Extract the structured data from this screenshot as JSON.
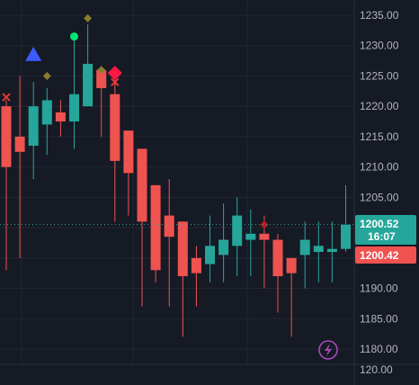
{
  "chart_data": {
    "type": "candlestick",
    "price_axis": {
      "ticks": [
        "1235.00",
        "1230.00",
        "1225.00",
        "1220.00",
        "1215.00",
        "1210.00",
        "1205.00",
        "1200.00",
        "1195.00",
        "1190.00",
        "1185.00",
        "1180.00"
      ],
      "range": [
        1178.0,
        1237.5
      ]
    },
    "sub_axis": {
      "tick": "120.00"
    },
    "last_price": {
      "value": "1200.52",
      "countdown": "16:07",
      "color": "#26a69a"
    },
    "prev_close": {
      "value": "1200.42",
      "color": "#ef5350"
    },
    "colors": {
      "up": "#26a69a",
      "down": "#ef5350",
      "background": "#161a25",
      "grid": "#232733"
    },
    "candles": [
      {
        "o": 1220,
        "h": 1221,
        "l": 1193,
        "c": 1210
      },
      {
        "o": 1215,
        "h": 1225,
        "l": 1195,
        "c": 1212.5
      },
      {
        "o": 1213.5,
        "h": 1224,
        "l": 1208,
        "c": 1220
      },
      {
        "o": 1217,
        "h": 1223,
        "l": 1212,
        "c": 1221
      },
      {
        "o": 1219,
        "h": 1221,
        "l": 1215,
        "c": 1217.5
      },
      {
        "o": 1217.5,
        "h": 1231,
        "l": 1213,
        "c": 1222
      },
      {
        "o": 1220,
        "h": 1233.5,
        "l": 1220,
        "c": 1227
      },
      {
        "o": 1226,
        "h": 1226,
        "l": 1215,
        "c": 1223
      },
      {
        "o": 1222,
        "h": 1225,
        "l": 1201,
        "c": 1211
      },
      {
        "o": 1216,
        "h": 1216,
        "l": 1202,
        "c": 1209
      },
      {
        "o": 1213,
        "h": 1213,
        "l": 1187,
        "c": 1201
      },
      {
        "o": 1207,
        "h": 1207,
        "l": 1191,
        "c": 1193
      },
      {
        "o": 1202,
        "h": 1208,
        "l": 1187,
        "c": 1198.5
      },
      {
        "o": 1201,
        "h": 1201,
        "l": 1182,
        "c": 1192
      },
      {
        "o": 1195,
        "h": 1197,
        "l": 1187,
        "c": 1192.5
      },
      {
        "o": 1194,
        "h": 1202,
        "l": 1191,
        "c": 1197
      },
      {
        "o": 1195.5,
        "h": 1204,
        "l": 1191,
        "c": 1198
      },
      {
        "o": 1197,
        "h": 1205,
        "l": 1192,
        "c": 1202
      },
      {
        "o": 1198,
        "h": 1203,
        "l": 1192,
        "c": 1199
      },
      {
        "o": 1199,
        "h": 1202,
        "l": 1190,
        "c": 1198
      },
      {
        "o": 1198,
        "h": 1199,
        "l": 1186,
        "c": 1192
      },
      {
        "o": 1195,
        "h": 1195,
        "l": 1182,
        "c": 1192.5
      },
      {
        "o": 1195.5,
        "h": 1201,
        "l": 1190,
        "c": 1198
      },
      {
        "o": 1196,
        "h": 1201,
        "l": 1191,
        "c": 1197
      },
      {
        "o": 1196,
        "h": 1201,
        "l": 1191,
        "c": 1196.5
      },
      {
        "o": 1196.5,
        "h": 1207,
        "l": 1196,
        "c": 1200.5
      }
    ],
    "markers": [
      {
        "candle": 0,
        "shape": "x",
        "price": 1221.5,
        "color": "#e53935"
      },
      {
        "candle": 2,
        "shape": "triangle-up",
        "price": 1228.5,
        "color": "#3d5afe"
      },
      {
        "candle": 3,
        "shape": "diamond",
        "price": 1225,
        "color": "#8a7d2a"
      },
      {
        "candle": 5,
        "shape": "circle",
        "price": 1231.5,
        "color": "#00e676"
      },
      {
        "candle": 6,
        "shape": "diamond",
        "price": 1234.5,
        "color": "#8a7d2a"
      },
      {
        "candle": 7,
        "shape": "diamond",
        "price": 1226,
        "color": "#8a7d2a"
      },
      {
        "candle": 8,
        "shape": "diamond-large",
        "price": 1225.5,
        "color": "#ff1744"
      },
      {
        "candle": 8,
        "shape": "x",
        "price": 1224,
        "color": "#e53935"
      },
      {
        "candle": 19,
        "shape": "diamond",
        "price": 1200.5,
        "color": "#b71c1c"
      }
    ],
    "bolt_icon": "lightning-icon",
    "bolt_color": "#ab47bc",
    "dotted_price_line": 1200.52
  }
}
